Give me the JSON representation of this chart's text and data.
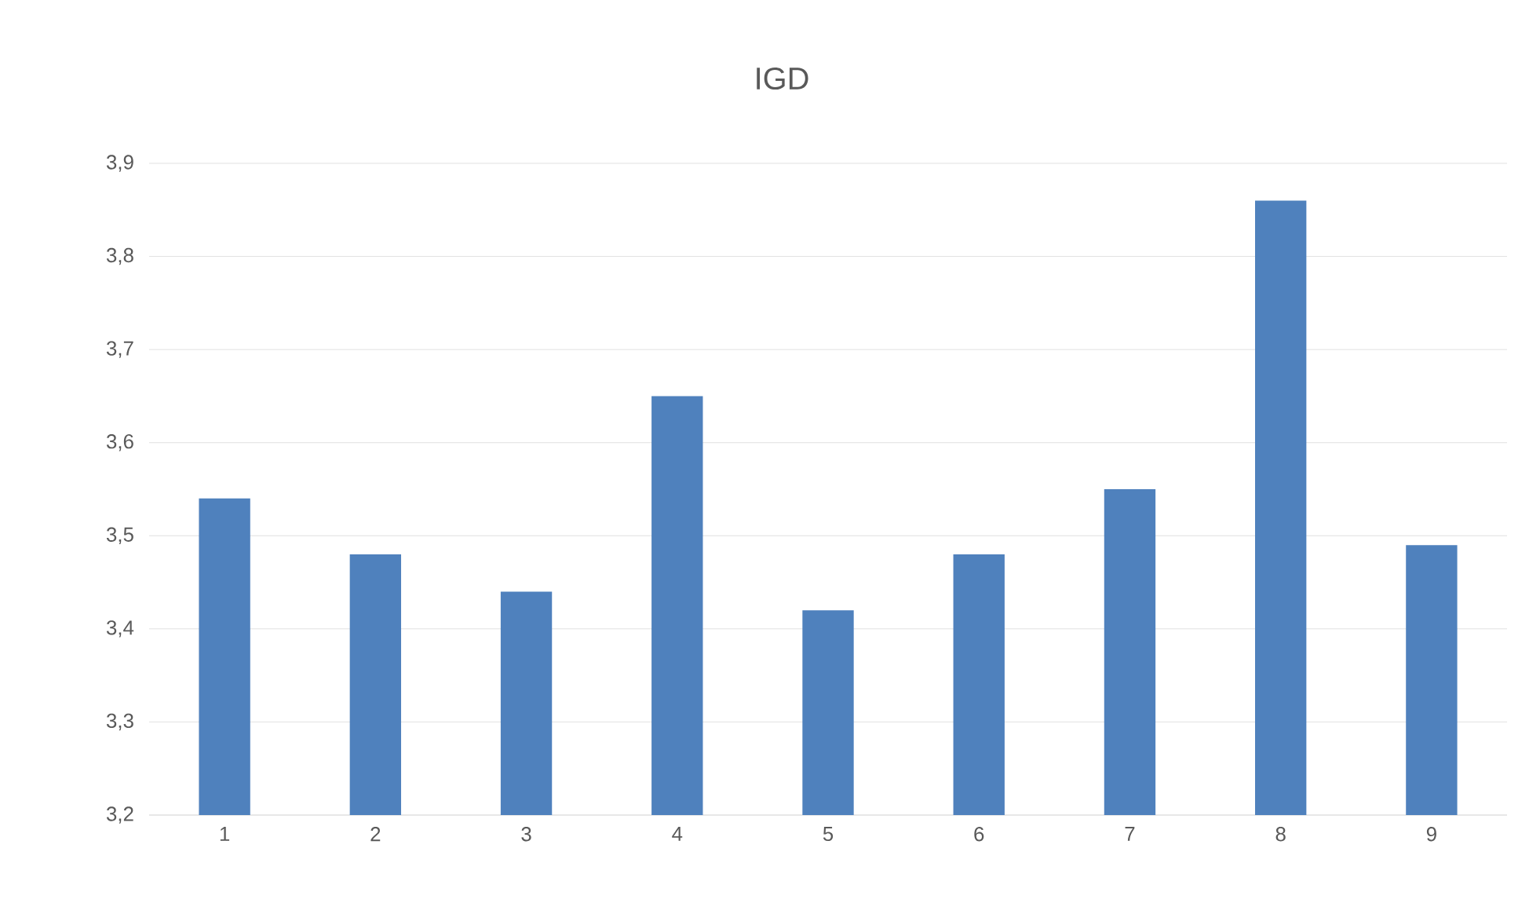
{
  "chart_data": {
    "type": "bar",
    "title": "IGD",
    "categories": [
      "1",
      "2",
      "3",
      "4",
      "5",
      "6",
      "7",
      "8",
      "9"
    ],
    "values": [
      3.54,
      3.48,
      3.44,
      3.65,
      3.42,
      3.48,
      3.55,
      3.86,
      3.49
    ],
    "color": "#4f81bd",
    "ylim": [
      3.2,
      3.9
    ],
    "yticks": [
      {
        "value": 3.2,
        "label": "3,2"
      },
      {
        "value": 3.3,
        "label": "3,3"
      },
      {
        "value": 3.4,
        "label": "3,4"
      },
      {
        "value": 3.5,
        "label": "3,5"
      },
      {
        "value": 3.6,
        "label": "3,6"
      },
      {
        "value": 3.7,
        "label": "3,7"
      },
      {
        "value": 3.8,
        "label": "3,8"
      },
      {
        "value": 3.9,
        "label": "3,9"
      }
    ],
    "grid": "y"
  }
}
